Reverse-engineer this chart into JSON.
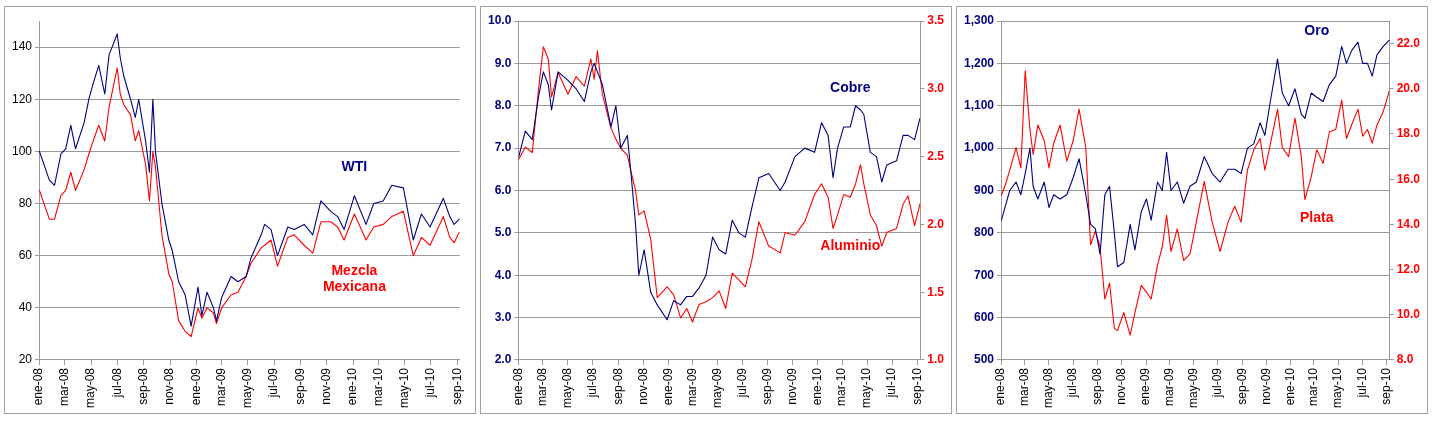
{
  "chart_data": [
    {
      "type": "line",
      "grid": "y",
      "legend": false,
      "x": [
        "2008-01-02",
        "2008-01-25",
        "2008-02-06",
        "2008-02-21",
        "2008-03-03",
        "2008-03-15",
        "2008-03-26",
        "2008-04-15",
        "2008-04-26",
        "2008-05-06",
        "2008-05-19",
        "2008-06-02",
        "2008-06-12",
        "2008-07-01",
        "2008-07-08",
        "2008-07-16",
        "2008-08-01",
        "2008-08-12",
        "2008-08-20",
        "2008-09-05",
        "2008-09-14",
        "2008-09-22",
        "2008-09-28",
        "2008-10-13",
        "2008-10-29",
        "2008-11-06",
        "2008-11-21",
        "2008-12-06",
        "2008-12-20",
        "2009-01-05",
        "2009-01-14",
        "2009-01-26",
        "2009-02-10",
        "2009-02-17",
        "2009-03-01",
        "2009-03-23",
        "2009-04-08",
        "2009-04-27",
        "2009-05-08",
        "2009-06-01",
        "2009-06-09",
        "2009-06-24",
        "2009-07-09",
        "2009-08-02",
        "2009-08-17",
        "2009-09-09",
        "2009-09-29",
        "2009-10-18",
        "2009-11-10",
        "2009-11-26",
        "2009-12-11",
        "2010-01-04",
        "2010-01-31",
        "2010-02-18",
        "2010-03-12",
        "2010-04-01",
        "2010-04-28",
        "2010-05-21",
        "2010-06-09",
        "2010-06-29",
        "2010-07-30",
        "2010-08-14",
        "2010-08-24",
        "2010-09-05"
      ],
      "series": [
        {
          "name": "WTI",
          "color": "#000080",
          "values": [
            100,
            89,
            87,
            99,
            101,
            110,
            101,
            111,
            120,
            126,
            133,
            122,
            137,
            145,
            136,
            129,
            120,
            113,
            120,
            104,
            92,
            120,
            100,
            80,
            66,
            62,
            50,
            45,
            33,
            48,
            37,
            46,
            40,
            35,
            44,
            52,
            50,
            52,
            59,
            68,
            72,
            70,
            60,
            71,
            70,
            72,
            68,
            81,
            77,
            75,
            70,
            83,
            72,
            80,
            81,
            87,
            86,
            66,
            76,
            71,
            82,
            75,
            72,
            74
          ]
        },
        {
          "name": "Mezcla Mexicana",
          "color": "#ff0000",
          "values": [
            85,
            74,
            74,
            83,
            85,
            92,
            85,
            93,
            99,
            104,
            110,
            104,
            117,
            132,
            122,
            118,
            114,
            104,
            108,
            95,
            81,
            100,
            94,
            68,
            53,
            50,
            35,
            31,
            29,
            40,
            36,
            40,
            38,
            34,
            40,
            45,
            46,
            52,
            57,
            63,
            64,
            66,
            56,
            67,
            68,
            64,
            61,
            73,
            73,
            71,
            66,
            76,
            66,
            71,
            72,
            75,
            77,
            60,
            67,
            64,
            75,
            67,
            65,
            69
          ]
        }
      ],
      "xlim": [
        "2008-01-01",
        "2010-09-06"
      ],
      "xticks": [
        {
          "value": "2008-01-01",
          "label": "ene-08"
        },
        {
          "value": "2008-03-01",
          "label": "mar-08"
        },
        {
          "value": "2008-05-01",
          "label": "may-08"
        },
        {
          "value": "2008-07-01",
          "label": "jul-08"
        },
        {
          "value": "2008-09-01",
          "label": "sep-08"
        },
        {
          "value": "2008-11-01",
          "label": "nov-08"
        },
        {
          "value": "2009-01-01",
          "label": "ene-09"
        },
        {
          "value": "2009-03-01",
          "label": "mar-09"
        },
        {
          "value": "2009-05-01",
          "label": "may-09"
        },
        {
          "value": "2009-07-01",
          "label": "jul-09"
        },
        {
          "value": "2009-09-01",
          "label": "sep-09"
        },
        {
          "value": "2009-11-01",
          "label": "nov-09"
        },
        {
          "value": "2010-01-01",
          "label": "ene-10"
        },
        {
          "value": "2010-03-01",
          "label": "mar-10"
        },
        {
          "value": "2010-05-01",
          "label": "may-10"
        },
        {
          "value": "2010-07-01",
          "label": "jul-10"
        },
        {
          "value": "2010-09-01",
          "label": "sep-10"
        }
      ],
      "ylim": [
        20,
        150
      ],
      "yticks": [
        20,
        40,
        60,
        80,
        100,
        120,
        140
      ]
    },
    {
      "type": "line",
      "grid": "y",
      "legend": false,
      "x": [
        "2008-01-02",
        "2008-01-18",
        "2008-02-04",
        "2008-02-19",
        "2008-03-02",
        "2008-03-14",
        "2008-03-22",
        "2008-04-07",
        "2008-05-01",
        "2008-05-21",
        "2008-06-10",
        "2008-06-26",
        "2008-07-04",
        "2008-07-12",
        "2008-07-24",
        "2008-08-14",
        "2008-08-26",
        "2008-09-07",
        "2008-09-23",
        "2008-10-01",
        "2008-10-13",
        "2008-10-21",
        "2008-11-03",
        "2008-11-19",
        "2008-12-05",
        "2008-12-29",
        "2009-01-14",
        "2009-01-31",
        "2009-02-15",
        "2009-03-01",
        "2009-03-17",
        "2009-04-03",
        "2009-04-19",
        "2009-05-05",
        "2009-05-21",
        "2009-06-06",
        "2009-06-22",
        "2009-07-08",
        "2009-07-24",
        "2009-08-10",
        "2009-09-03",
        "2009-10-01",
        "2009-10-13",
        "2009-11-06",
        "2009-11-30",
        "2009-12-24",
        "2010-01-10",
        "2010-01-26",
        "2010-02-07",
        "2010-02-18",
        "2010-03-05",
        "2010-03-21",
        "2010-04-03",
        "2010-04-15",
        "2010-04-23",
        "2010-05-09",
        "2010-05-24",
        "2010-06-06",
        "2010-06-18",
        "2010-07-12",
        "2010-07-28",
        "2010-08-09",
        "2010-08-25",
        "2010-09-07"
      ],
      "series": [
        {
          "name": "Cobre",
          "color": "#000080",
          "values": [
            6.8,
            7.4,
            7.2,
            8.2,
            8.8,
            8.5,
            7.9,
            8.8,
            8.6,
            8.4,
            8.1,
            8.8,
            9.0,
            8.8,
            8.5,
            7.5,
            8.0,
            7.0,
            7.3,
            6.5,
            5.2,
            4.0,
            4.6,
            3.6,
            3.3,
            2.95,
            3.4,
            3.3,
            3.5,
            3.5,
            3.7,
            4.0,
            4.9,
            4.6,
            4.5,
            5.3,
            5.0,
            4.9,
            5.6,
            6.3,
            6.4,
            6.0,
            6.2,
            6.8,
            7.0,
            6.9,
            7.6,
            7.3,
            6.3,
            7.0,
            7.5,
            7.5,
            8.0,
            7.9,
            7.8,
            6.9,
            6.8,
            6.2,
            6.6,
            6.7,
            7.3,
            7.3,
            7.2,
            7.7
          ]
        },
        {
          "name": "Aluminio",
          "color": "#ff0000",
          "axis": "y2",
          "values": [
            2.48,
            2.57,
            2.53,
            2.99,
            3.31,
            3.22,
            2.94,
            3.12,
            2.96,
            3.09,
            3.02,
            3.22,
            3.07,
            3.28,
            2.96,
            2.71,
            2.63,
            2.56,
            2.51,
            2.4,
            2.25,
            2.07,
            2.1,
            1.89,
            1.46,
            1.54,
            1.48,
            1.31,
            1.38,
            1.28,
            1.41,
            1.43,
            1.46,
            1.51,
            1.38,
            1.64,
            1.59,
            1.54,
            1.74,
            2.02,
            1.84,
            1.79,
            1.94,
            1.92,
            2.02,
            2.22,
            2.3,
            2.2,
            1.97,
            2.07,
            2.22,
            2.2,
            2.3,
            2.44,
            2.3,
            2.07,
            1.99,
            1.84,
            1.94,
            1.97,
            2.15,
            2.21,
            1.99,
            2.15
          ]
        }
      ],
      "xlim": [
        "2008-01-01",
        "2010-09-08"
      ],
      "xticks": [
        {
          "value": "2008-01-01",
          "label": "ene-08"
        },
        {
          "value": "2008-03-01",
          "label": "mar-08"
        },
        {
          "value": "2008-05-01",
          "label": "may-08"
        },
        {
          "value": "2008-07-01",
          "label": "jul-08"
        },
        {
          "value": "2008-09-01",
          "label": "sep-08"
        },
        {
          "value": "2008-11-01",
          "label": "nov-08"
        },
        {
          "value": "2009-01-01",
          "label": "ene-09"
        },
        {
          "value": "2009-03-01",
          "label": "mar-09"
        },
        {
          "value": "2009-05-01",
          "label": "may-09"
        },
        {
          "value": "2009-07-01",
          "label": "jul-09"
        },
        {
          "value": "2009-09-01",
          "label": "sep-09"
        },
        {
          "value": "2009-11-01",
          "label": "nov-09"
        },
        {
          "value": "2010-01-01",
          "label": "ene-10"
        },
        {
          "value": "2010-03-01",
          "label": "mar-10"
        },
        {
          "value": "2010-05-01",
          "label": "may-10"
        },
        {
          "value": "2010-07-01",
          "label": "jul-10"
        },
        {
          "value": "2010-09-01",
          "label": "sep-10"
        }
      ],
      "ylim": [
        2,
        10
      ],
      "yticks": [
        {
          "value": 2,
          "label": "2.0"
        },
        {
          "value": 3,
          "label": "3.0"
        },
        {
          "value": 4,
          "label": "4.0"
        },
        {
          "value": 5,
          "label": "5.0"
        },
        {
          "value": 6,
          "label": "6.0"
        },
        {
          "value": 7,
          "label": "7.0"
        },
        {
          "value": 8,
          "label": "8.0"
        },
        {
          "value": 9,
          "label": "9.0"
        },
        {
          "value": 10,
          "label": "10.0"
        }
      ],
      "y2lim": [
        1,
        3.5
      ],
      "y2ticks": [
        {
          "value": 1,
          "label": "1.0"
        },
        {
          "value": 1.5,
          "label": "1.5"
        },
        {
          "value": 2,
          "label": "2.0"
        },
        {
          "value": 2.5,
          "label": "2.5"
        },
        {
          "value": 3,
          "label": "3.0"
        },
        {
          "value": 3.5,
          "label": "3.5"
        }
      ]
    },
    {
      "type": "line",
      "grid": "y",
      "legend": false,
      "x": [
        "2008-01-02",
        "2008-01-11",
        "2008-01-23",
        "2008-02-08",
        "2008-02-20",
        "2008-03-02",
        "2008-03-14",
        "2008-03-22",
        "2008-04-03",
        "2008-04-19",
        "2008-05-01",
        "2008-05-13",
        "2008-05-29",
        "2008-06-15",
        "2008-07-01",
        "2008-07-16",
        "2008-08-02",
        "2008-08-14",
        "2008-08-26",
        "2008-09-07",
        "2008-09-19",
        "2008-10-01",
        "2008-10-13",
        "2008-10-21",
        "2008-11-06",
        "2008-11-22",
        "2008-12-04",
        "2008-12-20",
        "2009-01-02",
        "2009-01-14",
        "2009-01-30",
        "2009-02-11",
        "2009-02-22",
        "2009-03-05",
        "2009-03-21",
        "2009-04-06",
        "2009-04-22",
        "2009-05-08",
        "2009-05-28",
        "2009-06-17",
        "2009-07-07",
        "2009-07-27",
        "2009-08-13",
        "2009-08-29",
        "2009-09-14",
        "2009-09-30",
        "2009-10-16",
        "2009-10-28",
        "2009-11-09",
        "2009-11-29",
        "2009-12-11",
        "2009-12-27",
        "2010-01-12",
        "2010-01-28",
        "2010-02-06",
        "2010-02-22",
        "2010-03-08",
        "2010-03-24",
        "2010-04-09",
        "2010-04-25",
        "2010-05-10",
        "2010-05-22",
        "2010-06-04",
        "2010-06-20",
        "2010-07-02",
        "2010-07-14",
        "2010-07-26",
        "2010-08-07",
        "2010-08-23",
        "2010-09-07"
      ],
      "series": [
        {
          "name": "Oro",
          "color": "#000080",
          "values": [
            830,
            860,
            900,
            920,
            890,
            940,
            1000,
            910,
            880,
            920,
            860,
            890,
            880,
            890,
            930,
            975,
            890,
            820,
            810,
            750,
            890,
            910,
            800,
            720,
            730,
            820,
            760,
            850,
            880,
            830,
            920,
            900,
            990,
            900,
            920,
            870,
            910,
            920,
            980,
            940,
            920,
            950,
            950,
            940,
            1000,
            1010,
            1060,
            1030,
            1100,
            1210,
            1130,
            1100,
            1140,
            1080,
            1070,
            1130,
            1120,
            1110,
            1150,
            1170,
            1240,
            1200,
            1230,
            1250,
            1200,
            1200,
            1170,
            1220,
            1240,
            1255
          ]
        },
        {
          "name": "Plata",
          "color": "#ff0000",
          "axis": "y2",
          "values": [
            15.3,
            15.7,
            16.4,
            17.4,
            16.5,
            20.8,
            18.2,
            17.1,
            18.4,
            17.7,
            16.5,
            17.6,
            18.4,
            16.8,
            17.7,
            19.1,
            17.4,
            13.1,
            13.7,
            13,
            10.7,
            11.4,
            9.4,
            9.3,
            10.1,
            9.1,
            10.1,
            11.3,
            11,
            10.7,
            12.2,
            13,
            14.4,
            12.8,
            13.8,
            12.4,
            12.7,
            14.1,
            15.9,
            14.1,
            12.8,
            14.1,
            14.8,
            14.1,
            16.4,
            17.3,
            17.8,
            16.4,
            17.4,
            19.1,
            17.4,
            17,
            18.7,
            17,
            15.1,
            16.1,
            17.3,
            16.7,
            18.1,
            18.2,
            19.5,
            17.8,
            18.4,
            19.1,
            17.9,
            18.2,
            17.6,
            18.4,
            19,
            19.9
          ]
        }
      ],
      "xlim": [
        "2008-01-01",
        "2010-09-08"
      ],
      "xticks": [
        {
          "value": "2008-01-01",
          "label": "ene-08"
        },
        {
          "value": "2008-03-01",
          "label": "mar-08"
        },
        {
          "value": "2008-05-01",
          "label": "may-08"
        },
        {
          "value": "2008-07-01",
          "label": "jul-08"
        },
        {
          "value": "2008-09-01",
          "label": "sep-08"
        },
        {
          "value": "2008-11-01",
          "label": "nov-08"
        },
        {
          "value": "2009-01-01",
          "label": "ene-09"
        },
        {
          "value": "2009-03-01",
          "label": "mar-09"
        },
        {
          "value": "2009-05-01",
          "label": "may-09"
        },
        {
          "value": "2009-07-01",
          "label": "jul-09"
        },
        {
          "value": "2009-09-01",
          "label": "sep-09"
        },
        {
          "value": "2009-11-01",
          "label": "nov-09"
        },
        {
          "value": "2010-01-01",
          "label": "ene-10"
        },
        {
          "value": "2010-03-01",
          "label": "mar-10"
        },
        {
          "value": "2010-05-01",
          "label": "may-10"
        },
        {
          "value": "2010-07-01",
          "label": "jul-10"
        },
        {
          "value": "2010-09-01",
          "label": "sep-10"
        }
      ],
      "ylim": [
        500,
        1300
      ],
      "yticks": [
        500,
        600,
        700,
        800,
        900,
        {
          "value": 1000,
          "label": "1,000"
        },
        {
          "value": 1100,
          "label": "1,100"
        },
        {
          "value": 1200,
          "label": "1,200"
        },
        {
          "value": 1300,
          "label": "1,300"
        }
      ],
      "y2lim": [
        8,
        23
      ],
      "y2ticks": [
        {
          "value": 8,
          "label": "8.0"
        },
        {
          "value": 10,
          "label": "10.0"
        },
        {
          "value": 12,
          "label": "12.0"
        },
        {
          "value": 14,
          "label": "14.0"
        },
        {
          "value": 16,
          "label": "16.0"
        },
        {
          "value": 18,
          "label": "18.0"
        },
        {
          "value": 20,
          "label": "20.0"
        },
        {
          "value": 22,
          "label": "22.0"
        }
      ]
    }
  ]
}
